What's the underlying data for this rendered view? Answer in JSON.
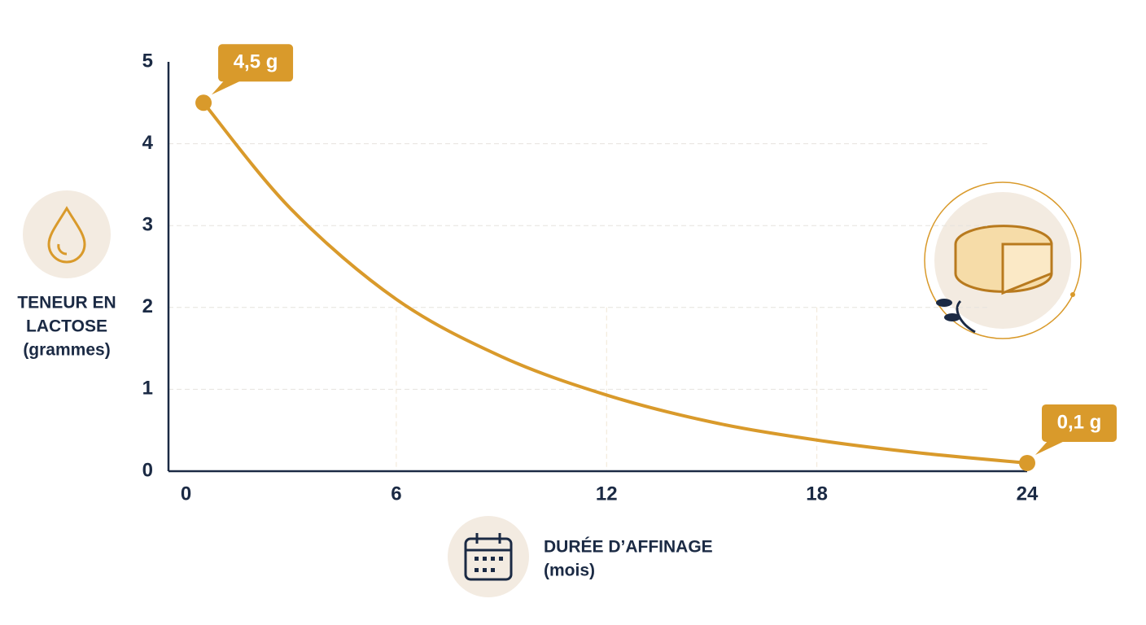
{
  "chart_data": {
    "type": "line",
    "y_label": [
      "TENEUR EN",
      "LACTOSE",
      "(grammes)"
    ],
    "x_label": [
      "DURÉE D’AFFINAGE",
      "(mois)"
    ],
    "x": [
      0.5,
      3,
      6,
      9,
      12,
      15,
      18,
      21,
      24
    ],
    "series": [
      {
        "color": "#d99a2b",
        "values": [
          4.5,
          3.2,
          2.1,
          1.4,
          0.93,
          0.6,
          0.38,
          0.22,
          0.1
        ],
        "value_labels": [
          "4,5 g",
          null,
          null,
          null,
          null,
          null,
          null,
          null,
          "0,1 g"
        ]
      }
    ],
    "xlim": [
      -0.5,
      24
    ],
    "xticks": [
      0,
      6,
      12,
      18,
      24
    ],
    "ylim": [
      0,
      5
    ],
    "yticks": [
      0,
      1,
      2,
      3,
      4,
      5
    ],
    "grid": true
  }
}
